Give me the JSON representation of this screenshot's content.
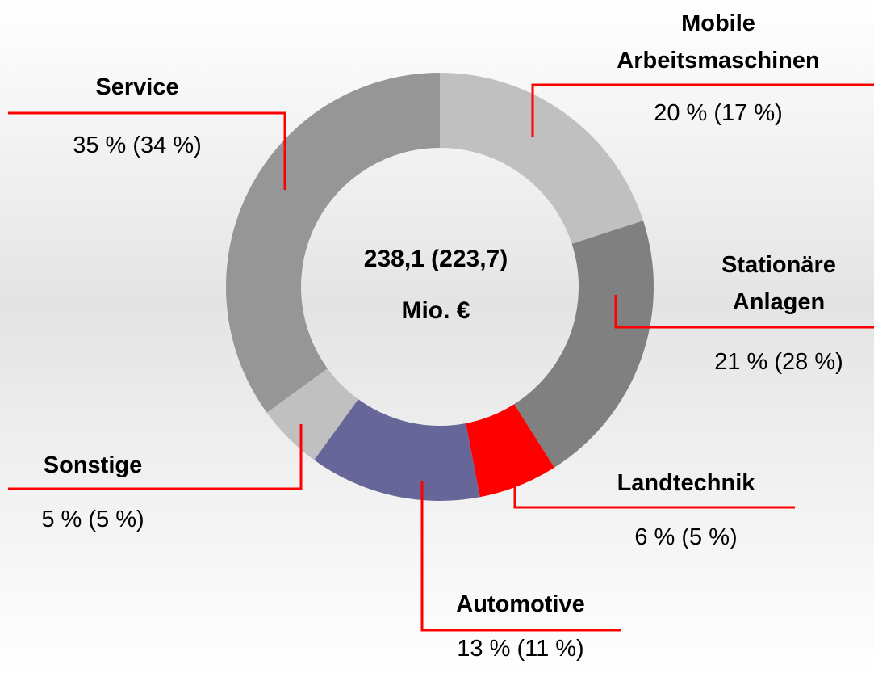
{
  "chart_data": {
    "type": "donut",
    "categories": [
      "Mobile Arbeitsmaschinen",
      "Stationäre Anlagen",
      "Landtechnik",
      "Automotive",
      "Sonstige",
      "Service"
    ],
    "values": [
      20,
      21,
      6,
      13,
      5,
      35
    ],
    "value_labels": [
      "20 % (17 %)",
      "21 % (28 %)",
      "6 % (5 %)",
      "13 % (11 %)",
      "5 % (5 %)",
      "35 % (34 %)"
    ],
    "colors": [
      "#c0c0c0",
      "#808080",
      "#ff0000",
      "#666699",
      "#c0c0c0",
      "#969696"
    ],
    "center_text": [
      "238,1 (223,7)",
      "Mio. €"
    ]
  }
}
